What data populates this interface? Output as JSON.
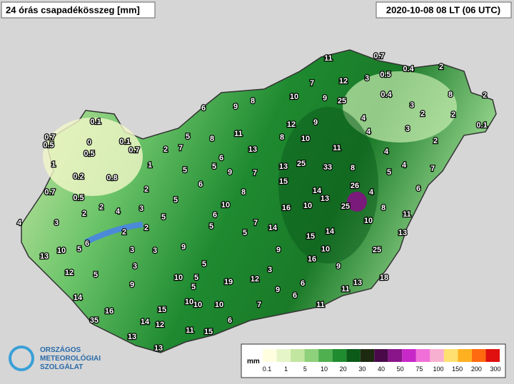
{
  "header": {
    "title": "24 órás csapadékösszeg [mm]",
    "time": "2020-10-08 08 LT (06 UTC)"
  },
  "stations": [
    11,
    0.7,
    0.5,
    0.4,
    2,
    7,
    12,
    3,
    10,
    9,
    25,
    0.4,
    8,
    2,
    6,
    9,
    8,
    3,
    2,
    2,
    0.1,
    12,
    9,
    4,
    3,
    0.1,
    8,
    11,
    8,
    10,
    4,
    2,
    0.7,
    0.5,
    0,
    0.1,
    0.7,
    2,
    7,
    5,
    0.5,
    13,
    11,
    4,
    1,
    1,
    6,
    5,
    9,
    7,
    13,
    25,
    33,
    8,
    4,
    5,
    7,
    0.2,
    0.8,
    5,
    15,
    26,
    6,
    0.7,
    2,
    6,
    8,
    14,
    4,
    13,
    0.5,
    25,
    8,
    2,
    4,
    3,
    5,
    10,
    16,
    10,
    11,
    4,
    3,
    2,
    5,
    6,
    5,
    7,
    14,
    10,
    5,
    2,
    2,
    15,
    14,
    13,
    6,
    5,
    10,
    13,
    3,
    3,
    9,
    9,
    10,
    25,
    16,
    3,
    5,
    9,
    12,
    5,
    3,
    10,
    5,
    19,
    12,
    6,
    13,
    18,
    9,
    5,
    10,
    9,
    11,
    14,
    10,
    6,
    10,
    7,
    11,
    16,
    15,
    35,
    6,
    14,
    12,
    11,
    15,
    13,
    13
  ],
  "legend": {
    "unit": "mm",
    "ticks": [
      0.1,
      1,
      5,
      10,
      20,
      30,
      40,
      50,
      75,
      100,
      150,
      200,
      300
    ],
    "colors": [
      "#ffffe0",
      "#e6f5c8",
      "#c2e6a0",
      "#8fd07a",
      "#4fb04f",
      "#1f8c2f",
      "#0b5a18",
      "#1e2a10",
      "#4a0a4a",
      "#8a148a",
      "#c828c8",
      "#f070d8",
      "#f8b0d0",
      "#ffe070",
      "#ffb020",
      "#ff6a10",
      "#e01010"
    ]
  },
  "logo": {
    "line1": "ORSZÁGOS",
    "line2": "METEOROLÓGIAI",
    "line3": "SZOLGÁLAT"
  }
}
